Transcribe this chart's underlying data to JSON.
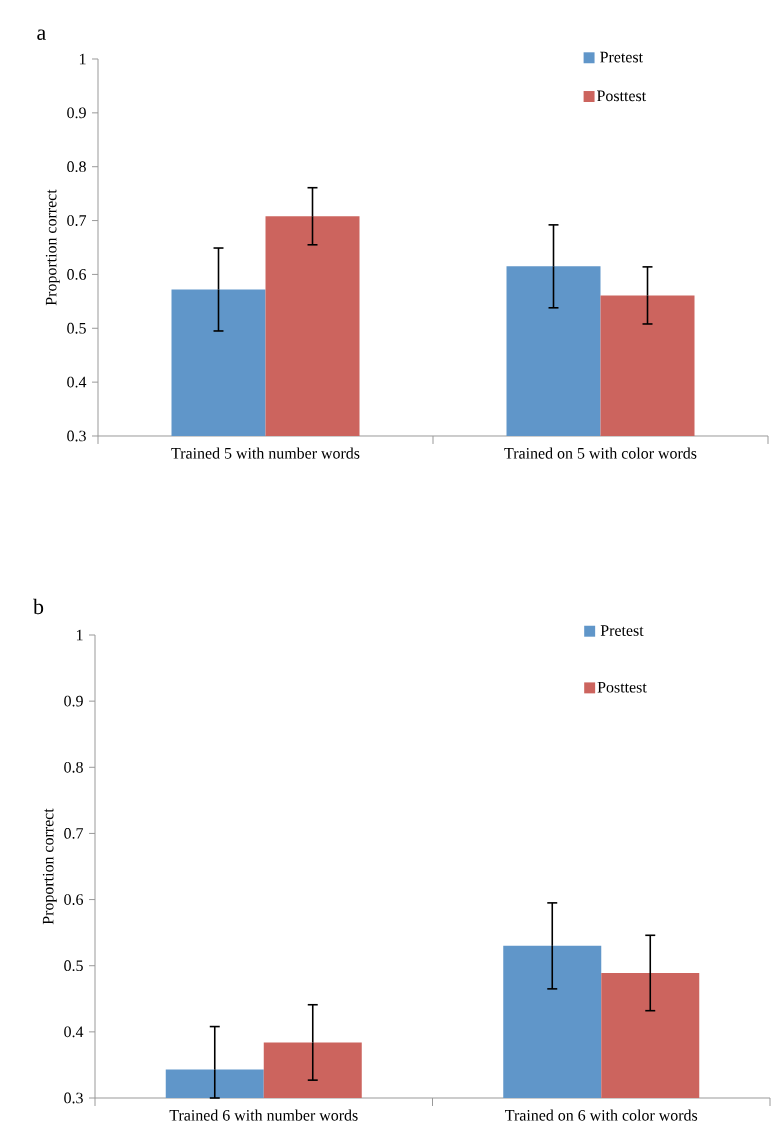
{
  "chart_data": [
    {
      "type": "bar",
      "title": "a",
      "ylabel": "Proportion correct",
      "categories": [
        "Trained 5 with number words",
        "Trained on 5 with color words"
      ],
      "ylim": [
        0.3,
        1
      ],
      "yticks": [
        0.3,
        0.4,
        0.5,
        0.6,
        0.7,
        0.8,
        0.9,
        1
      ],
      "legend": "top right",
      "series": [
        {
          "name": "Pretest",
          "color": "#6096c9",
          "values": [
            0.572,
            0.615
          ],
          "errors": [
            0.077,
            0.077
          ]
        },
        {
          "name": "Posttest",
          "color": "#cc645e",
          "values": [
            0.708,
            0.561
          ],
          "errors": [
            0.053,
            0.053
          ]
        }
      ]
    },
    {
      "type": "bar",
      "title": "b",
      "ylabel": "Proportion correct",
      "categories": [
        "Trained 6 with number words",
        "Trained on 6 with color words"
      ],
      "ylim": [
        0.3,
        1
      ],
      "yticks": [
        0.3,
        0.4,
        0.5,
        0.6,
        0.7,
        0.8,
        0.9,
        1
      ],
      "legend": "top right",
      "series": [
        {
          "name": "Pretest",
          "color": "#6096c9",
          "values": [
            0.343,
            0.53
          ],
          "errors": [
            [
              0.3,
              0.408
            ],
            0.065
          ]
        },
        {
          "name": "Posttest",
          "color": "#cc645e",
          "values": [
            0.384,
            0.489
          ],
          "errors": [
            0.057,
            0.057
          ]
        }
      ]
    }
  ]
}
